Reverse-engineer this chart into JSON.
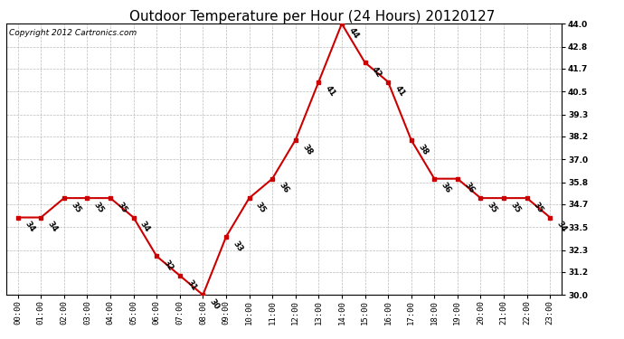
{
  "title": "Outdoor Temperature per Hour (24 Hours) 20120127",
  "copyright": "Copyright 2012 Cartronics.com",
  "hours": [
    "00:00",
    "01:00",
    "02:00",
    "03:00",
    "04:00",
    "05:00",
    "06:00",
    "07:00",
    "08:00",
    "09:00",
    "10:00",
    "11:00",
    "12:00",
    "13:00",
    "14:00",
    "15:00",
    "16:00",
    "17:00",
    "18:00",
    "19:00",
    "20:00",
    "21:00",
    "22:00",
    "23:00"
  ],
  "temperatures": [
    34,
    34,
    35,
    35,
    35,
    34,
    32,
    31,
    30,
    33,
    35,
    36,
    38,
    41,
    44,
    42,
    41,
    38,
    36,
    36,
    35,
    35,
    35,
    34
  ],
  "ylim": [
    30.0,
    44.0
  ],
  "yticks": [
    30.0,
    31.2,
    32.3,
    33.5,
    34.7,
    35.8,
    37.0,
    38.2,
    39.3,
    40.5,
    41.7,
    42.8,
    44.0
  ],
  "line_color": "#cc0000",
  "marker_color": "#cc0000",
  "bg_color": "#ffffff",
  "grid_color": "#bbbbbb",
  "title_fontsize": 11,
  "label_fontsize": 6.5,
  "annot_fontsize": 6.5,
  "copyright_fontsize": 6.5
}
